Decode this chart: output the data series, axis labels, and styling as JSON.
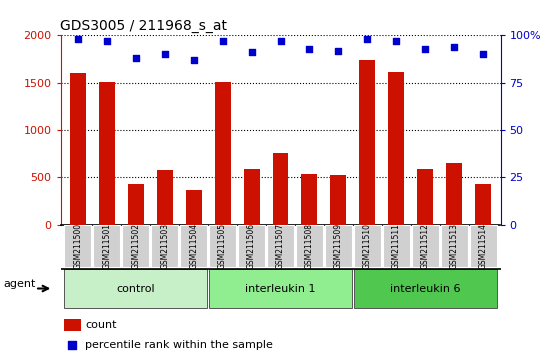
{
  "title": "GDS3005 / 211968_s_at",
  "samples": [
    "GSM211500",
    "GSM211501",
    "GSM211502",
    "GSM211503",
    "GSM211504",
    "GSM211505",
    "GSM211506",
    "GSM211507",
    "GSM211508",
    "GSM211509",
    "GSM211510",
    "GSM211511",
    "GSM211512",
    "GSM211513",
    "GSM211514"
  ],
  "counts": [
    1600,
    1510,
    430,
    580,
    370,
    1510,
    590,
    760,
    540,
    530,
    1735,
    1610,
    590,
    650,
    430
  ],
  "percentile": [
    98,
    97,
    88,
    90,
    87,
    97,
    91,
    97,
    93,
    92,
    98,
    97,
    93,
    94,
    90
  ],
  "groups": [
    {
      "label": "control",
      "start": 0,
      "end": 5,
      "color": "#c8f0c8"
    },
    {
      "label": "interleukin 1",
      "start": 5,
      "end": 10,
      "color": "#90ee90"
    },
    {
      "label": "interleukin 6",
      "start": 10,
      "end": 15,
      "color": "#50c850"
    }
  ],
  "bar_color": "#cc1100",
  "dot_color": "#0000cc",
  "ylim_left": [
    0,
    2000
  ],
  "ylim_right": [
    0,
    100
  ],
  "yticks_left": [
    0,
    500,
    1000,
    1500,
    2000
  ],
  "yticks_right": [
    0,
    25,
    50,
    75,
    100
  ],
  "left_axis_color": "#cc1100",
  "right_axis_color": "#0000cc",
  "grid_color": "#000000",
  "agent_label": "agent",
  "legend_count": "count",
  "legend_percentile": "percentile rank within the sample",
  "tick_label_bg": "#d0d0d0"
}
